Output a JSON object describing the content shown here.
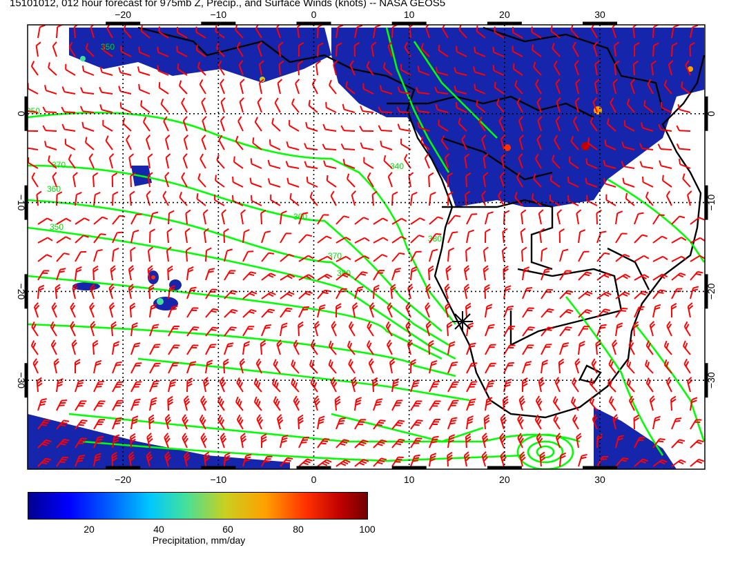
{
  "title": "15101012, 012 hour forecast for 975mb Z, Precip., and Surface Winds (knots) -- NASA GEOS5",
  "map": {
    "lon_range": [
      -30,
      41
    ],
    "lat_range": [
      -40,
      10
    ],
    "lon_ticks": [
      -20,
      -10,
      0,
      10,
      20,
      30
    ],
    "lat_ticks": [
      0,
      -10,
      -20,
      -30
    ],
    "lon_labels": [
      "−20",
      "−10",
      "0",
      "10",
      "20",
      "30"
    ],
    "lat_labels": [
      "0",
      "−10",
      "−20",
      "−30"
    ],
    "contour_labels": [
      "350",
      "370",
      "360",
      "350",
      "340",
      "360",
      "370",
      "380",
      "350",
      "380"
    ],
    "colors": {
      "wind": "#ff0000",
      "contour": "#00ff00",
      "coast": "#000000",
      "precip_base": "#0a1aa8"
    }
  },
  "colorbar": {
    "title": "Precipitation, mm/day",
    "ticks": [
      "20",
      "40",
      "60",
      "80",
      "100"
    ],
    "tick_values": [
      20,
      40,
      60,
      80,
      100
    ],
    "range": [
      0,
      100
    ]
  }
}
